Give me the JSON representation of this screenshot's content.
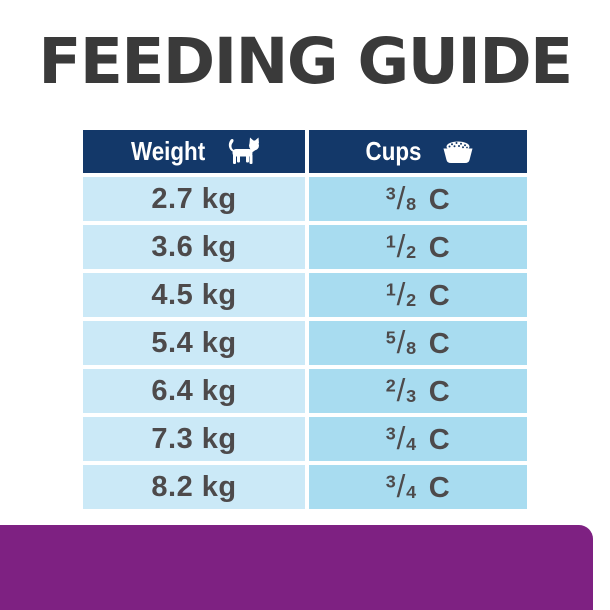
{
  "title": "FEEDING GUIDE",
  "table": {
    "columns": [
      {
        "label": "Weight",
        "icon": "cat-icon"
      },
      {
        "label": "Cups",
        "icon": "food-bowl-icon"
      }
    ],
    "rows": [
      {
        "weight": "2.7 kg",
        "cups": {
          "num": "3",
          "den": "8",
          "unit": "C"
        }
      },
      {
        "weight": "3.6 kg",
        "cups": {
          "num": "1",
          "den": "2",
          "unit": "C"
        }
      },
      {
        "weight": "4.5 kg",
        "cups": {
          "num": "1",
          "den": "2",
          "unit": "C"
        }
      },
      {
        "weight": "5.4 kg",
        "cups": {
          "num": "5",
          "den": "8",
          "unit": "C"
        }
      },
      {
        "weight": "6.4 kg",
        "cups": {
          "num": "2",
          "den": "3",
          "unit": "C"
        }
      },
      {
        "weight": "7.3 kg",
        "cups": {
          "num": "3",
          "den": "4",
          "unit": "C"
        }
      },
      {
        "weight": "8.2 kg",
        "cups": {
          "num": "3",
          "den": "4",
          "unit": "C"
        }
      }
    ]
  },
  "colors": {
    "header_navy": "#133869",
    "weight_column_blue": "#cbe9f7",
    "cups_column_blue": "#a8dcf0",
    "cell_text": "#4d4a4b",
    "title_text": "#3a3a3a",
    "accent_purple": "#7e2182"
  }
}
